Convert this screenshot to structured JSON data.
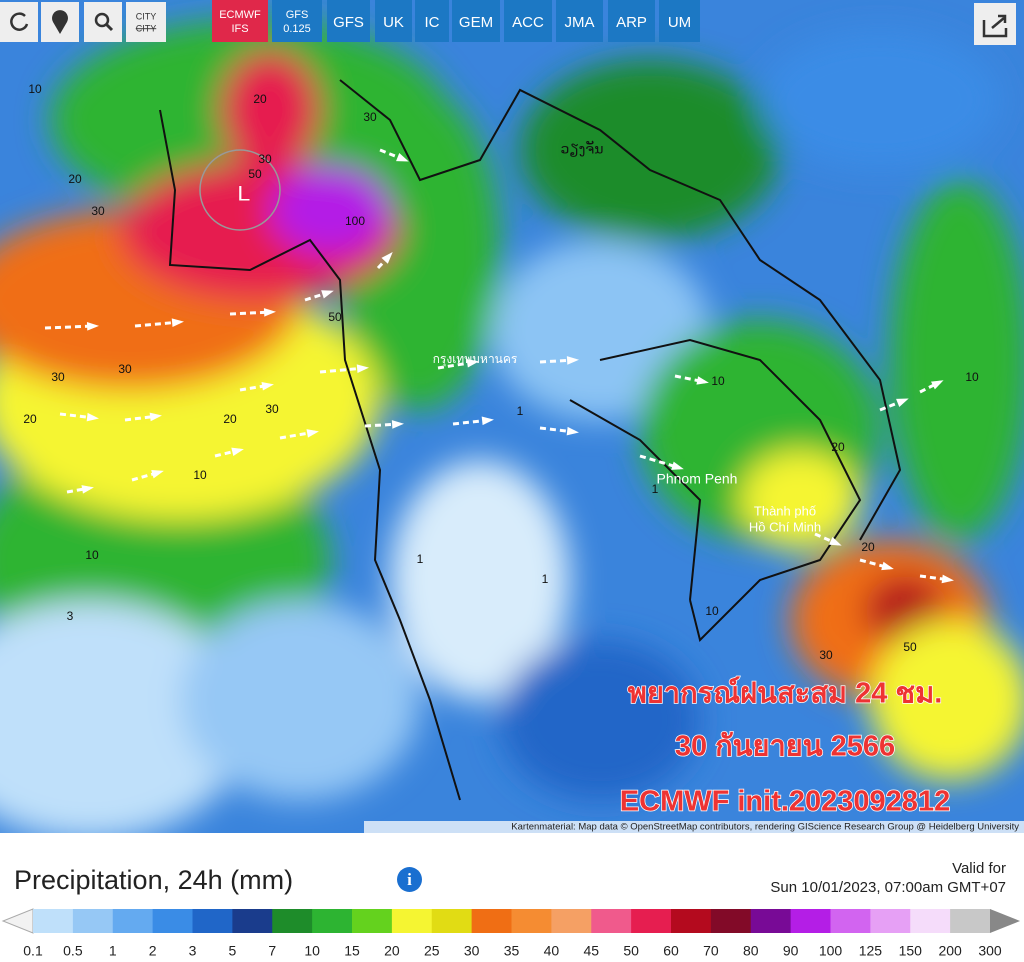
{
  "toolbar": {
    "city_button": "CITY",
    "city_button_struck": "CITY"
  },
  "models": [
    {
      "name": "ECMWF",
      "sub": "IFS",
      "active": true
    },
    {
      "name": "GFS",
      "sub": "0.125",
      "active": false
    },
    {
      "name": "GFS",
      "active": false
    },
    {
      "name": "UK",
      "active": false
    },
    {
      "name": "IC",
      "active": false
    },
    {
      "name": "GEM",
      "active": false
    },
    {
      "name": "ACC",
      "active": false
    },
    {
      "name": "JMA",
      "active": false
    },
    {
      "name": "ARP",
      "active": false
    },
    {
      "name": "UM",
      "active": false
    }
  ],
  "overlay": {
    "lines": [
      "พยากรณ์ฝนสะสม 24 ชม.",
      "30 กันยายน 2566",
      "ECMWF init.2023092812"
    ]
  },
  "map_labels": {
    "low_marker": "L",
    "vientiane": "ວຽງຈັນ",
    "bangkok": "กรุงเทพมหานคร",
    "phnom_penh": "Phnom Penh",
    "hcmc_line1": "Thành phố",
    "hcmc_line2": "Hồ Chí Minh"
  },
  "contour_labels": [
    "10",
    "20",
    "30",
    "20",
    "30",
    "50",
    "30",
    "50",
    "100",
    "30",
    "30",
    "20",
    "10",
    "20",
    "30",
    "10",
    "1",
    "1",
    "1",
    "10",
    "20",
    "50",
    "30",
    "10",
    "1",
    "20",
    "10",
    "3"
  ],
  "attribution": "Kartenmaterial: Map data © OpenStreetMap contributors, rendering GIScience Research Group @ Heidelberg University",
  "legend": {
    "title": "Precipitation, 24h (mm)",
    "valid_label": "Valid for",
    "valid_time": "Sun 10/01/2023, 07:00am GMT+07",
    "labels": [
      "0.1",
      "0.5",
      "1",
      "2",
      "3",
      "5",
      "7",
      "10",
      "15",
      "20",
      "25",
      "30",
      "35",
      "40",
      "45",
      "50",
      "60",
      "70",
      "80",
      "90",
      "100",
      "125",
      "150",
      "200",
      "300"
    ],
    "colors": [
      "#bfe0fa",
      "#96c8f5",
      "#64aaf0",
      "#3a8ce6",
      "#2066c8",
      "#1a3c8c",
      "#1e8c2a",
      "#2db432",
      "#64d21e",
      "#f5f532",
      "#e1dc14",
      "#f06e14",
      "#f58c32",
      "#f5a064",
      "#f05a8c",
      "#e61e50",
      "#b40a1e",
      "#820a28",
      "#780a96",
      "#b41ee6",
      "#d264f0",
      "#e6a0f5",
      "#f5dcfa",
      "#c8c8c8"
    ]
  }
}
